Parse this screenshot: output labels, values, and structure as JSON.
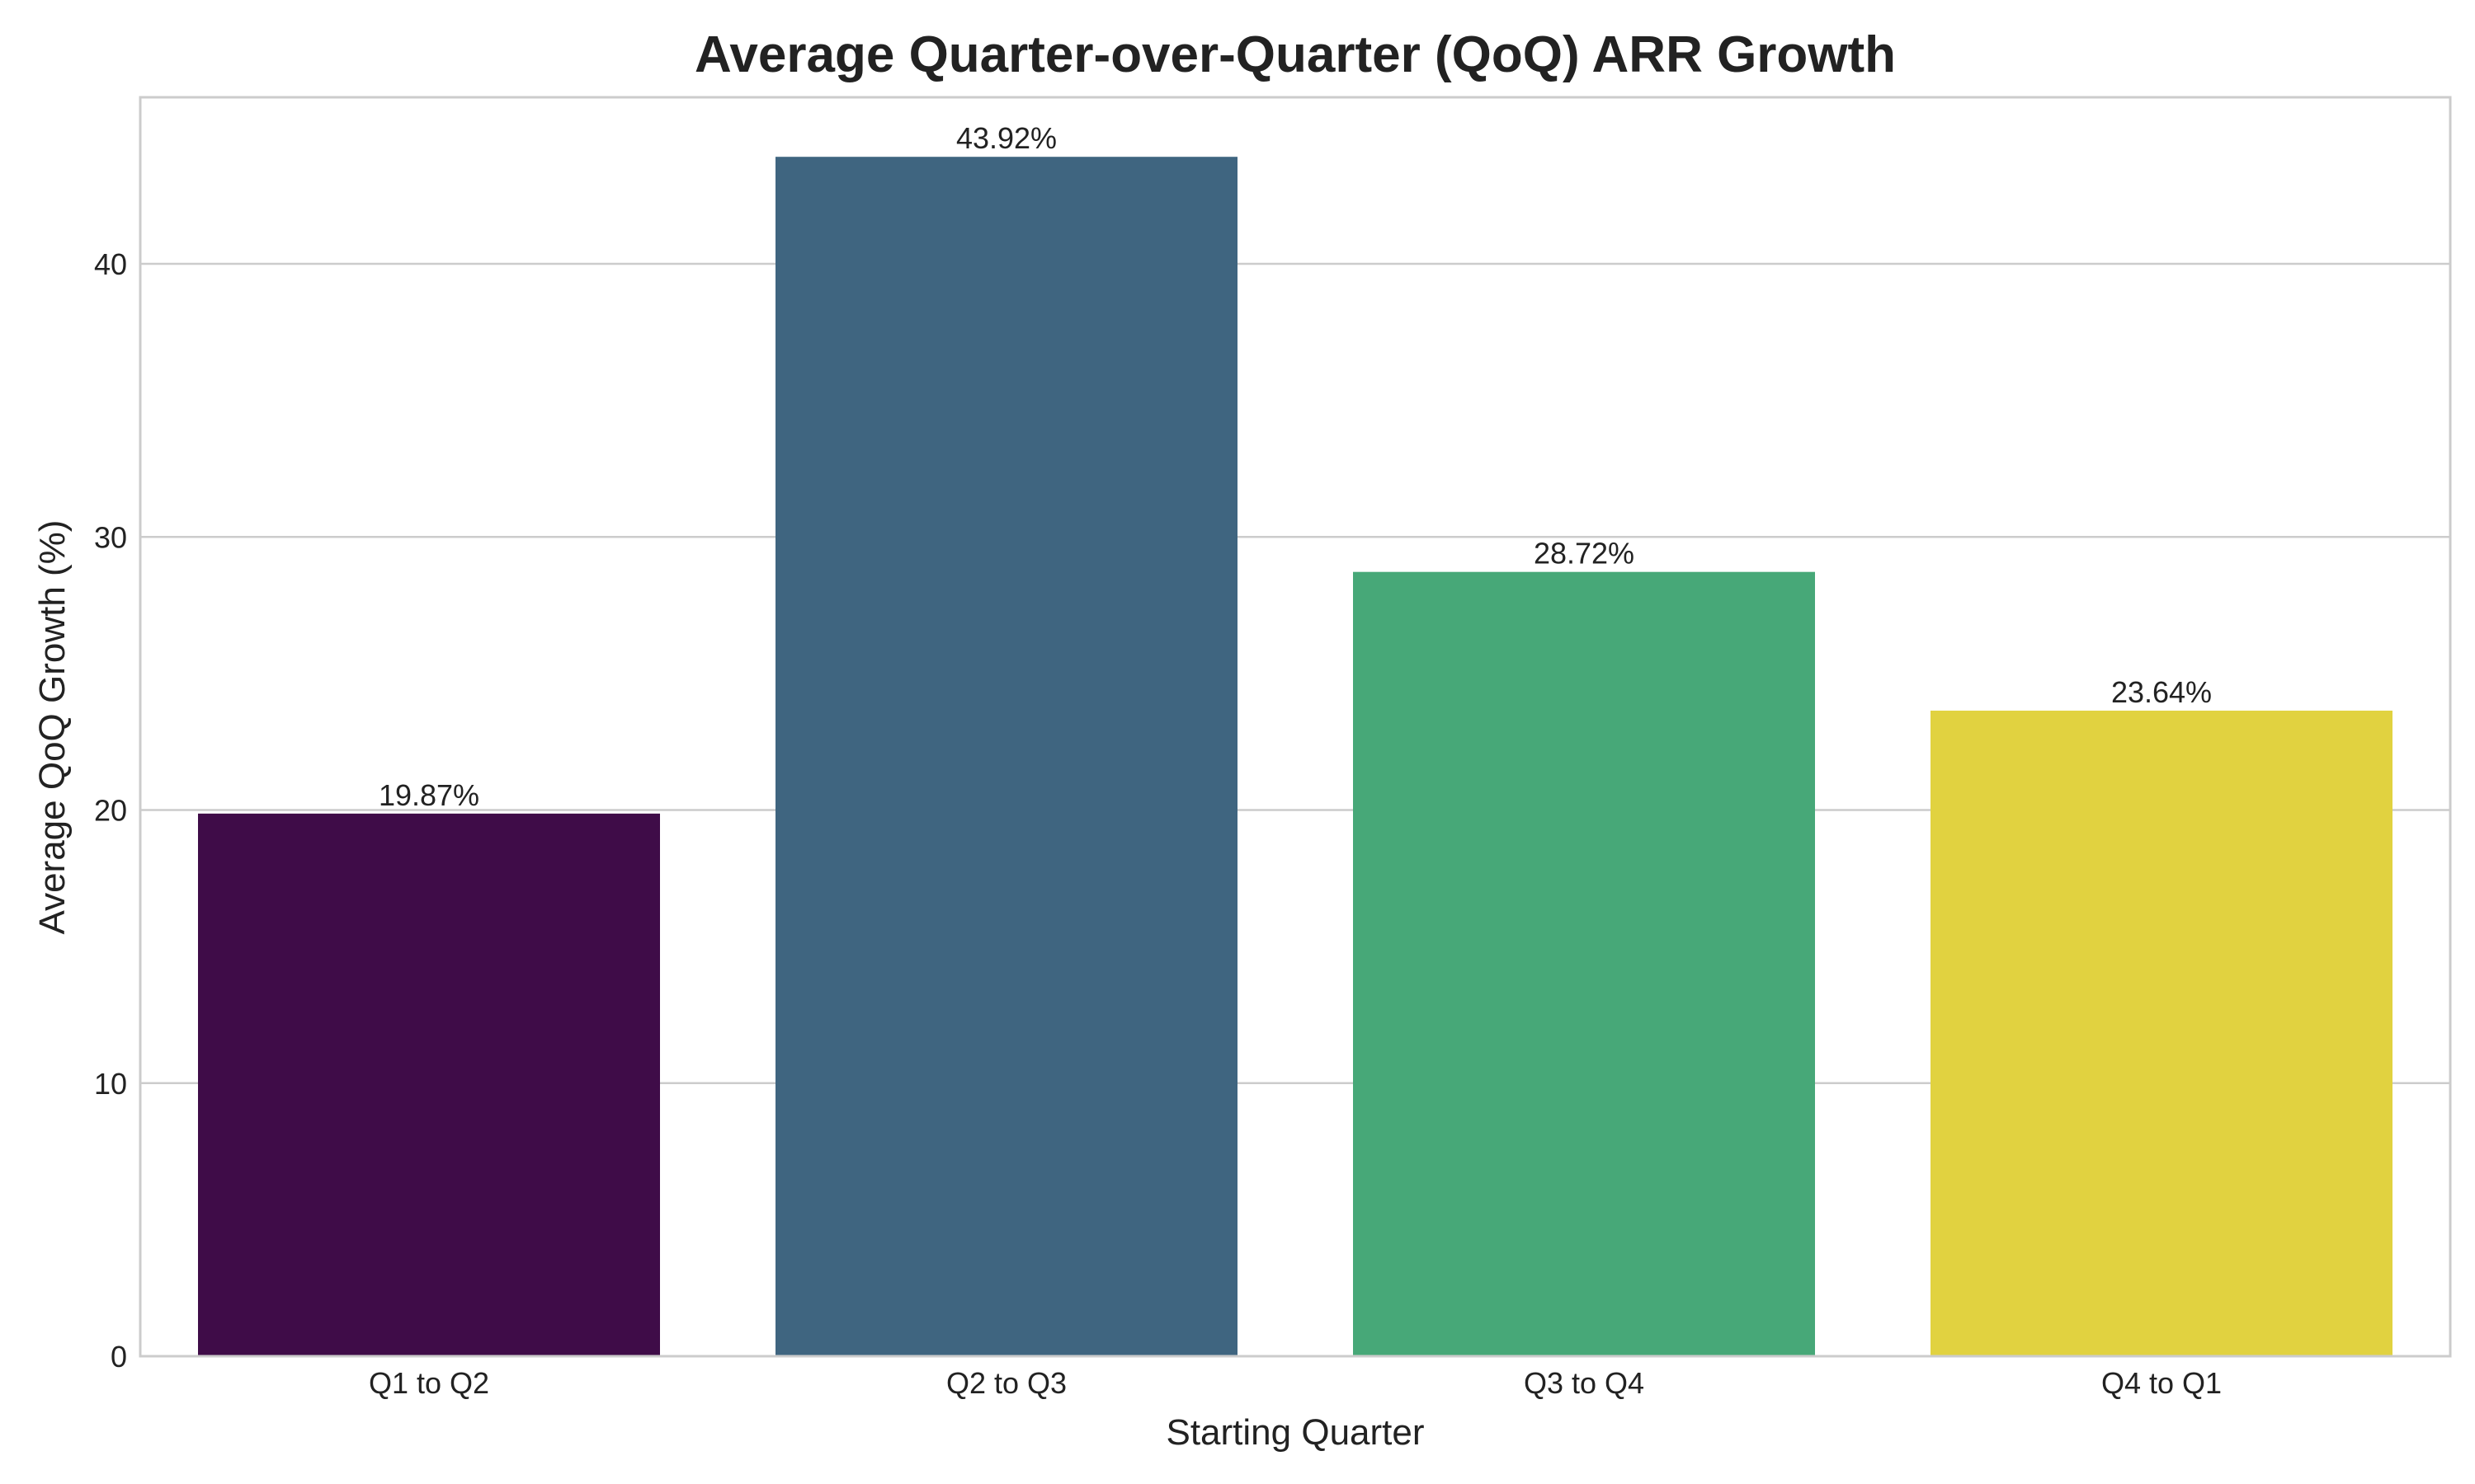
{
  "chart_data": {
    "type": "bar",
    "title": "Average Quarter-over-Quarter (QoQ) ARR Growth",
    "xlabel": "Starting Quarter",
    "ylabel": "Average QoQ Growth (%)",
    "categories": [
      "Q1 to Q2",
      "Q2 to Q3",
      "Q3 to Q4",
      "Q4 to Q1"
    ],
    "values": [
      19.87,
      43.92,
      28.72,
      23.64
    ],
    "data_labels": [
      "19.87%",
      "43.92%",
      "28.72%",
      "23.64%"
    ],
    "colors": [
      "#3f0c48",
      "#3f6580",
      "#47a878",
      "#e1d240"
    ],
    "ylim": [
      0,
      46.1
    ],
    "yticks": [
      0,
      10,
      20,
      30,
      40
    ],
    "grid": "y",
    "legend": "none"
  }
}
